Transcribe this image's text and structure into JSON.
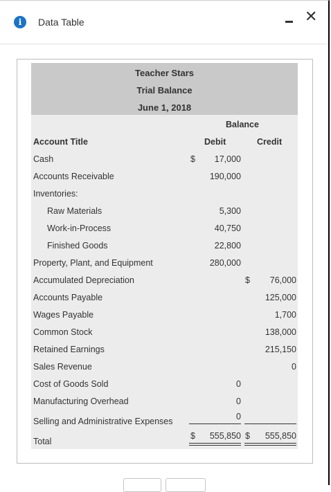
{
  "dialog": {
    "title": "Data Table",
    "info_icon": "i",
    "close_glyph": "✕"
  },
  "report": {
    "company": "Teacher Stars",
    "statement": "Trial Balance",
    "date": "June 1, 2018",
    "balance_header": "Balance",
    "col_account": "Account Title",
    "col_debit": "Debit",
    "col_credit": "Credit"
  },
  "rows": [
    {
      "label": "Cash",
      "debit_sign": "$",
      "debit": "17,000",
      "credit_sign": "",
      "credit": ""
    },
    {
      "label": "Accounts Receivable",
      "debit_sign": "",
      "debit": "190,000",
      "credit_sign": "",
      "credit": ""
    },
    {
      "label": "Inventories:",
      "debit_sign": "",
      "debit": "",
      "credit_sign": "",
      "credit": ""
    },
    {
      "label": "Raw Materials",
      "debit_sign": "",
      "debit": "5,300",
      "credit_sign": "",
      "credit": ""
    },
    {
      "label": "Work-in-Process",
      "debit_sign": "",
      "debit": "40,750",
      "credit_sign": "",
      "credit": ""
    },
    {
      "label": "Finished Goods",
      "debit_sign": "",
      "debit": "22,800",
      "credit_sign": "",
      "credit": ""
    },
    {
      "label": "Property, Plant, and Equipment",
      "debit_sign": "",
      "debit": "280,000",
      "credit_sign": "",
      "credit": ""
    },
    {
      "label": "Accumulated Depreciation",
      "debit_sign": "",
      "debit": "",
      "credit_sign": "$",
      "credit": "76,000"
    },
    {
      "label": "Accounts Payable",
      "debit_sign": "",
      "debit": "",
      "credit_sign": "",
      "credit": "125,000"
    },
    {
      "label": "Wages Payable",
      "debit_sign": "",
      "debit": "",
      "credit_sign": "",
      "credit": "1,700"
    },
    {
      "label": "Common Stock",
      "debit_sign": "",
      "debit": "",
      "credit_sign": "",
      "credit": "138,000"
    },
    {
      "label": "Retained Earnings",
      "debit_sign": "",
      "debit": "",
      "credit_sign": "",
      "credit": "215,150"
    },
    {
      "label": "Sales Revenue",
      "debit_sign": "",
      "debit": "",
      "credit_sign": "",
      "credit": "0"
    },
    {
      "label": "Cost of Goods Sold",
      "debit_sign": "",
      "debit": "0",
      "credit_sign": "",
      "credit": ""
    },
    {
      "label": "Manufacturing Overhead",
      "debit_sign": "",
      "debit": "0",
      "credit_sign": "",
      "credit": ""
    },
    {
      "label": "Selling and Administrative Expenses",
      "debit_sign": "",
      "debit": "0",
      "credit_sign": "",
      "credit": ""
    }
  ],
  "total": {
    "label": "Total",
    "debit_sign": "$",
    "debit": "555,850",
    "credit_sign": "$",
    "credit": "555,850"
  },
  "colors": {
    "info_icon": "#1a73c8",
    "header_band": "#c9c9c9",
    "table_background": "#ececec"
  }
}
